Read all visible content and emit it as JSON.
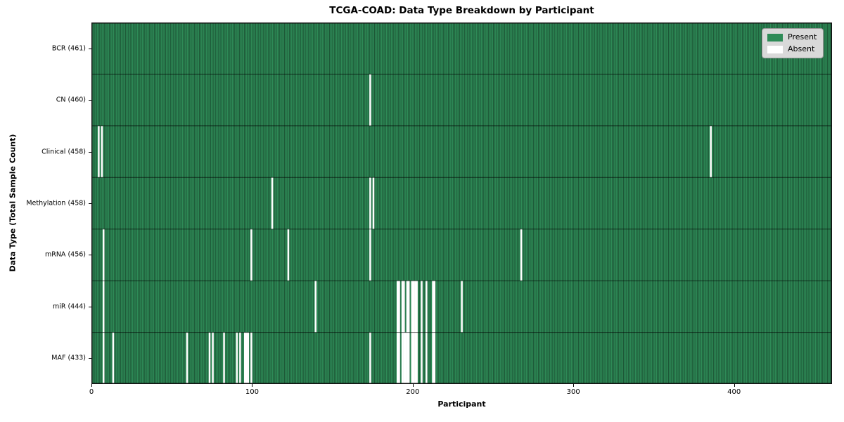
{
  "chart_data": {
    "type": "heatmap",
    "title": "TCGA-COAD: Data Type Breakdown by Participant",
    "xlabel": "Participant",
    "ylabel": "Data Type (Total Sample Count)",
    "n_participants": 461,
    "x_ticks": [
      0,
      100,
      200,
      300,
      400
    ],
    "legend_position": "upper right",
    "grid": false,
    "colors": {
      "present": "#2e8b57",
      "absent": "#ffffff",
      "bar_edge": "rgba(0,0,0,0.55)",
      "row_separator": "rgba(0,0,0,0.6)",
      "plot_border": "#111111",
      "legend_bg": "#d9d9d9"
    },
    "legend": [
      {
        "label": "Present",
        "color": "#2e8b57"
      },
      {
        "label": "Absent",
        "color": "#ffffff"
      }
    ],
    "rows": [
      {
        "label": "BCR (461)",
        "data_type": "BCR",
        "present_count": 461,
        "absent_participants": []
      },
      {
        "label": "CN (460)",
        "data_type": "CN",
        "present_count": 460,
        "absent_participants": [
          173
        ]
      },
      {
        "label": "Clinical (458)",
        "data_type": "Clinical",
        "present_count": 458,
        "absent_participants": [
          4,
          6,
          385
        ]
      },
      {
        "label": "Methylation (458)",
        "data_type": "Methylation",
        "present_count": 458,
        "absent_participants": [
          112,
          173,
          175
        ]
      },
      {
        "label": "mRNA (456)",
        "data_type": "mRNA",
        "present_count": 456,
        "absent_participants": [
          7,
          99,
          122,
          173,
          267
        ]
      },
      {
        "label": "miR (444)",
        "data_type": "miR",
        "present_count": 444,
        "absent_participants": [
          7,
          139,
          190,
          191,
          193,
          194,
          196,
          197,
          199,
          200,
          201,
          202,
          205,
          208,
          212,
          213,
          230
        ]
      },
      {
        "label": "MAF (433)",
        "data_type": "MAF",
        "present_count": 433,
        "absent_participants": [
          7,
          13,
          59,
          73,
          75,
          82,
          90,
          92,
          95,
          96,
          97,
          99,
          173,
          190,
          191,
          193,
          194,
          195,
          196,
          197,
          199,
          200,
          201,
          202,
          205,
          208,
          212,
          213
        ]
      }
    ]
  }
}
